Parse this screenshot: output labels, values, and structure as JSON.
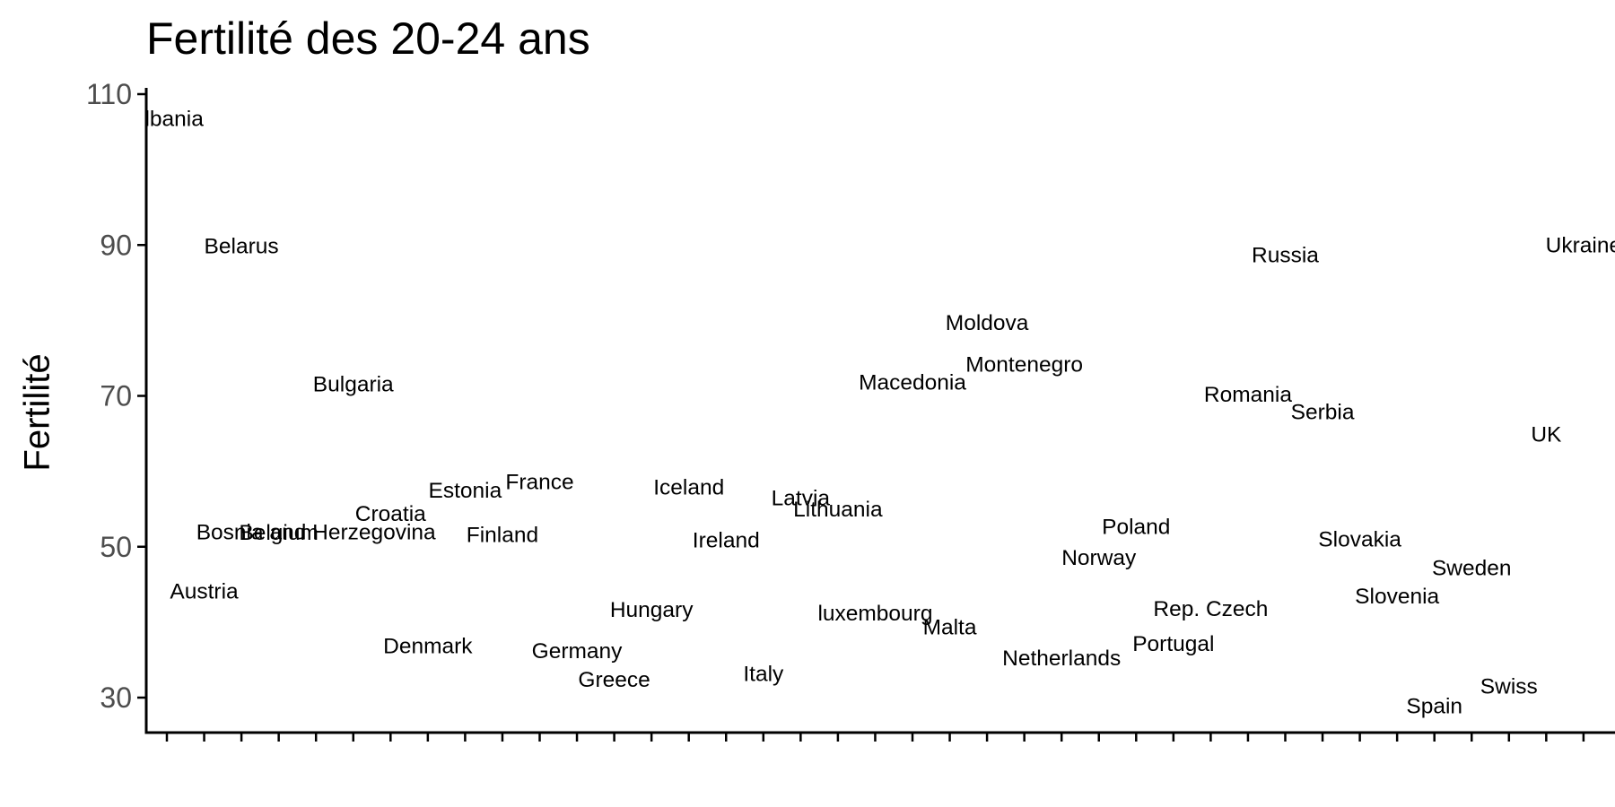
{
  "chart_data": {
    "type": "scatter",
    "title": "Fertilité des 20-24 ans",
    "ylabel": "Fertilité",
    "xlabel": "",
    "ylim": [
      25.5,
      111
    ],
    "yticks": [
      30,
      50,
      70,
      90,
      110
    ],
    "grid": false,
    "x_tick_count": 40,
    "points": [
      {
        "label": "Albania",
        "x": 1,
        "y": 106.7
      },
      {
        "label": "Austria",
        "x": 2,
        "y": 44.0
      },
      {
        "label": "Belarus",
        "x": 3,
        "y": 89.8
      },
      {
        "label": "Belgium",
        "x": 4,
        "y": 51.8
      },
      {
        "label": "Bosnia and Herzegovina",
        "x": 5,
        "y": 51.9
      },
      {
        "label": "Bulgaria",
        "x": 6,
        "y": 71.5
      },
      {
        "label": "Croatia",
        "x": 7,
        "y": 54.3
      },
      {
        "label": "Denmark",
        "x": 8,
        "y": 36.8
      },
      {
        "label": "Estonia",
        "x": 9,
        "y": 57.4
      },
      {
        "label": "Finland",
        "x": 10,
        "y": 51.5
      },
      {
        "label": "France",
        "x": 11,
        "y": 58.5
      },
      {
        "label": "Germany",
        "x": 12,
        "y": 36.1
      },
      {
        "label": "Greece",
        "x": 13,
        "y": 32.3
      },
      {
        "label": "Hungary",
        "x": 14,
        "y": 41.6
      },
      {
        "label": "Iceland",
        "x": 15,
        "y": 57.8
      },
      {
        "label": "Ireland",
        "x": 16,
        "y": 50.8
      },
      {
        "label": "Italy",
        "x": 17,
        "y": 33.1
      },
      {
        "label": "Latvia",
        "x": 18,
        "y": 56.4
      },
      {
        "label": "Lithuania",
        "x": 19,
        "y": 54.9
      },
      {
        "label": "luxembourg",
        "x": 20,
        "y": 41.1
      },
      {
        "label": "Macedonia",
        "x": 21,
        "y": 71.7
      },
      {
        "label": "Malta",
        "x": 22,
        "y": 39.3
      },
      {
        "label": "Moldova",
        "x": 23,
        "y": 79.6
      },
      {
        "label": "Montenegro",
        "x": 24,
        "y": 74.1
      },
      {
        "label": "Netherlands",
        "x": 25,
        "y": 35.2
      },
      {
        "label": "Norway",
        "x": 26,
        "y": 48.5
      },
      {
        "label": "Poland",
        "x": 27,
        "y": 52.6
      },
      {
        "label": "Portugal",
        "x": 28,
        "y": 37.1
      },
      {
        "label": "Rep. Czech",
        "x": 29,
        "y": 41.7
      },
      {
        "label": "Romania",
        "x": 30,
        "y": 70.1
      },
      {
        "label": "Russia",
        "x": 31,
        "y": 88.6
      },
      {
        "label": "Serbia",
        "x": 32,
        "y": 67.8
      },
      {
        "label": "Slovakia",
        "x": 33,
        "y": 50.9
      },
      {
        "label": "Slovenia",
        "x": 34,
        "y": 43.4
      },
      {
        "label": "Spain",
        "x": 35,
        "y": 28.8
      },
      {
        "label": "Sweden",
        "x": 36,
        "y": 47.1
      },
      {
        "label": "Swiss",
        "x": 37,
        "y": 31.4
      },
      {
        "label": "UK",
        "x": 38,
        "y": 64.8
      },
      {
        "label": "Ukraine",
        "x": 39,
        "y": 89.9
      }
    ]
  }
}
